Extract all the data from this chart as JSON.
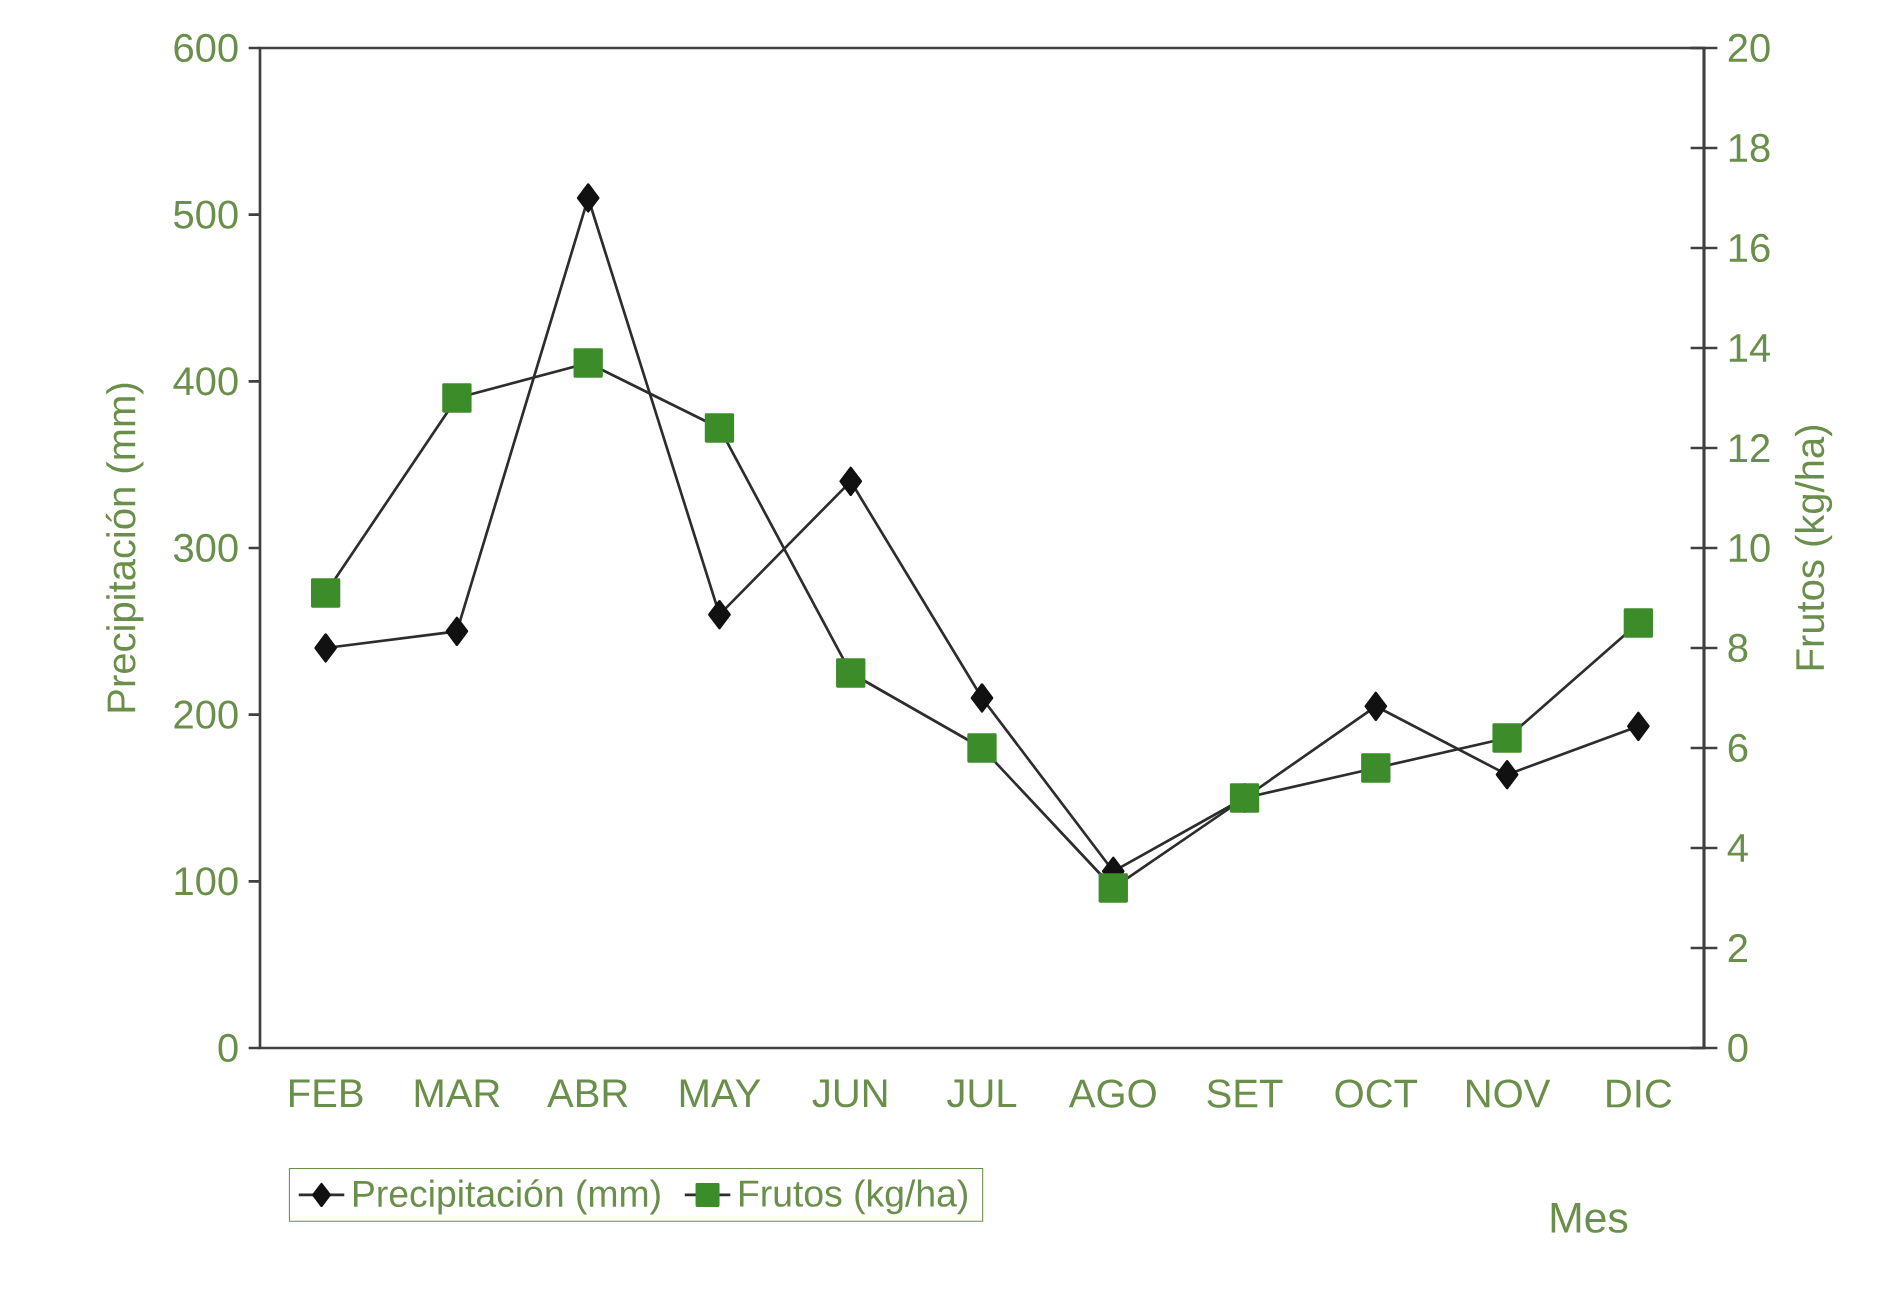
{
  "chart_data": {
    "type": "line",
    "categories": [
      "FEB",
      "MAR",
      "ABR",
      "MAY",
      "JUN",
      "JUL",
      "AGO",
      "SET",
      "OCT",
      "NOV",
      "DIC"
    ],
    "xlabel": "Mes",
    "ylabel": "Precipitación (mm)",
    "y2label": "Frutos (kg/ha)",
    "series": [
      {
        "name": "Precipitación (mm)",
        "color": "#111111",
        "marker": "diamond",
        "values": [
          240,
          250,
          510,
          260,
          340,
          210,
          106,
          150,
          205,
          164,
          193
        ]
      },
      {
        "name": "Frutos (kg/ha)",
        "color": "#3c8c2a",
        "marker": "square",
        "axis": "y2",
        "values": [
          9.1,
          13.0,
          13.7,
          12.4,
          7.5,
          6.0,
          3.2,
          5.0,
          5.6,
          6.2,
          8.5
        ]
      }
    ],
    "ylim": [
      0,
      600
    ],
    "yticks": [
      0,
      100,
      200,
      300,
      400,
      500,
      600
    ],
    "y2lim": [
      0,
      20
    ],
    "y2ticks": [
      0,
      2,
      4,
      6,
      8,
      10,
      12,
      14,
      16,
      18,
      20
    ],
    "legend": "bottom",
    "grid": false,
    "line_style": "solid"
  }
}
